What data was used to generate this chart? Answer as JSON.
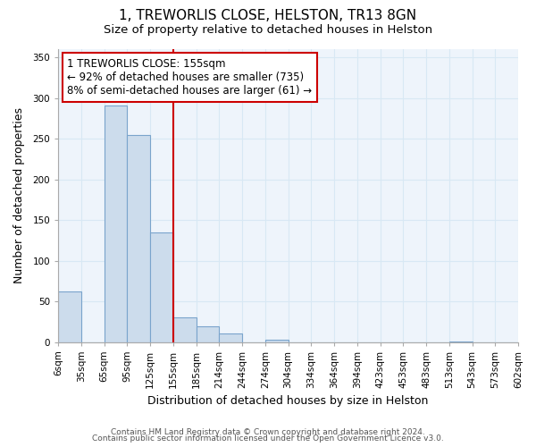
{
  "title": "1, TREWORLIS CLOSE, HELSTON, TR13 8GN",
  "subtitle": "Size of property relative to detached houses in Helston",
  "xlabel": "Distribution of detached houses by size in Helston",
  "ylabel": "Number of detached properties",
  "footnote1": "Contains HM Land Registry data © Crown copyright and database right 2024.",
  "footnote2": "Contains public sector information licensed under the Open Government Licence v3.0.",
  "annotation_title": "1 TREWORLIS CLOSE: 155sqm",
  "annotation_line1": "← 92% of detached houses are smaller (735)",
  "annotation_line2": "8% of semi-detached houses are larger (61) →",
  "bar_color": "#ccdcec",
  "bar_edge_color": "#7aa4cc",
  "vline_color": "#cc0000",
  "bin_labels": [
    "6sqm",
    "35sqm",
    "65sqm",
    "95sqm",
    "125sqm",
    "155sqm",
    "185sqm",
    "214sqm",
    "244sqm",
    "274sqm",
    "304sqm",
    "334sqm",
    "364sqm",
    "394sqm",
    "423sqm",
    "453sqm",
    "483sqm",
    "513sqm",
    "543sqm",
    "573sqm",
    "602sqm"
  ],
  "bar_heights": [
    62,
    0,
    291,
    255,
    135,
    30,
    19,
    11,
    0,
    3,
    0,
    0,
    0,
    0,
    0,
    0,
    0,
    1,
    0,
    0
  ],
  "vline_bin_index": 5,
  "ylim": [
    0,
    360
  ],
  "yticks": [
    0,
    50,
    100,
    150,
    200,
    250,
    300,
    350
  ],
  "grid_color": "#d8e8f4",
  "background_color": "#eef4fb",
  "annotation_box_color": "#ffffff",
  "annotation_box_edge": "#cc0000",
  "title_fontsize": 11,
  "subtitle_fontsize": 9.5,
  "axis_label_fontsize": 9,
  "tick_fontsize": 7.5,
  "annotation_fontsize": 8.5,
  "footnote_fontsize": 6.5
}
